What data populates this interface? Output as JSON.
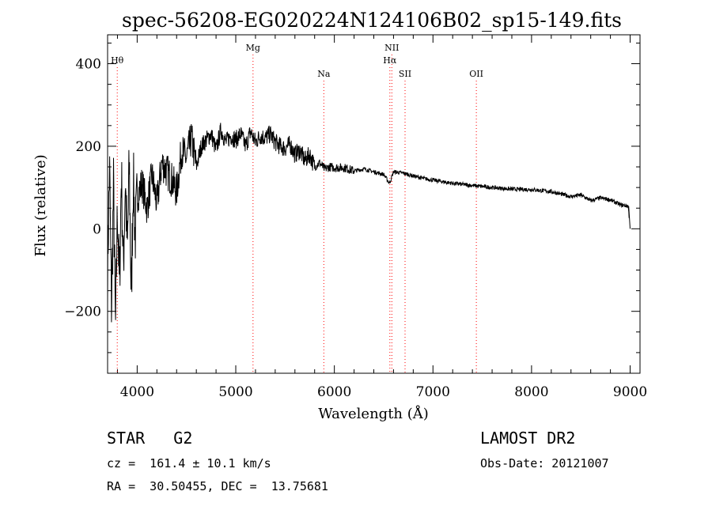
{
  "chart_data": {
    "type": "line",
    "title": "spec-56208-EG020224N124106B02_sp15-149.fits",
    "xlabel": "Wavelength (Å)",
    "ylabel": "Flux (relative)",
    "xlim": [
      3700,
      9100
    ],
    "ylim": [
      -350,
      470
    ],
    "x_ticks": [
      4000,
      5000,
      6000,
      7000,
      8000,
      9000
    ],
    "x_tick_labels": [
      "4000",
      "5000",
      "6000",
      "7000",
      "8000",
      "9000"
    ],
    "y_ticks": [
      -200,
      0,
      200,
      400
    ],
    "y_tick_labels": [
      "−200",
      "0",
      "200",
      "400"
    ],
    "grid": false,
    "line_color": "#000000",
    "marker_color": "#ff0000",
    "series": [
      {
        "x": [
          3700,
          3720,
          3740,
          3760,
          3780,
          3800,
          3820,
          3840,
          3860,
          3880,
          3900,
          3920,
          3940,
          3960,
          3980,
          4000,
          4050,
          4100,
          4150,
          4200,
          4250,
          4300,
          4350,
          4400,
          4450,
          4500,
          4550,
          4600,
          4650,
          4700,
          4750,
          4800,
          4850,
          4900,
          4950,
          5000,
          5050,
          5100,
          5150,
          5200,
          5250,
          5300,
          5350,
          5400,
          5450,
          5500,
          5550,
          5600,
          5650,
          5700,
          5750,
          5800,
          5850,
          5900,
          5950,
          6000,
          6100,
          6200,
          6300,
          6400,
          6500,
          6560,
          6600,
          6700,
          6800,
          6900,
          7000,
          7200,
          7400,
          7600,
          7800,
          8000,
          8200,
          8400,
          8500,
          8600,
          8700,
          8800,
          8900,
          8980,
          9000
        ],
        "y": [
          -100,
          150,
          -200,
          100,
          -250,
          60,
          -150,
          140,
          -100,
          120,
          -60,
          160,
          -180,
          130,
          -20,
          80,
          110,
          50,
          130,
          60,
          160,
          140,
          120,
          90,
          190,
          170,
          220,
          150,
          200,
          215,
          230,
          190,
          240,
          210,
          225,
          215,
          230,
          200,
          235,
          210,
          225,
          220,
          230,
          210,
          200,
          195,
          205,
          180,
          190,
          165,
          180,
          150,
          160,
          145,
          150,
          148,
          148,
          140,
          145,
          138,
          132,
          110,
          138,
          135,
          128,
          122,
          118,
          110,
          105,
          100,
          96,
          95,
          90,
          78,
          82,
          68,
          75,
          70,
          58,
          55,
          0
        ]
      }
    ],
    "line_markers": [
      {
        "label": "Hθ",
        "x": 3798,
        "row": 1
      },
      {
        "label": "Mg",
        "x": 5175,
        "row": 0
      },
      {
        "label": "Na",
        "x": 5893,
        "row": 2
      },
      {
        "label": "NII",
        "x": 6583,
        "row": 0
      },
      {
        "label": "Hα",
        "x": 6563,
        "row": 1
      },
      {
        "label": "SII",
        "x": 6717,
        "row": 2
      },
      {
        "label": "OII",
        "x": 7440,
        "row": 2
      }
    ]
  },
  "info": {
    "object_class": "STAR   G2",
    "survey": "LAMOST DR2",
    "redshift": "cz =  161.4 ± 10.1 km/s",
    "obs_date": "Obs-Date: 20121007",
    "coords": "RA =  30.50455, DEC =  13.75681"
  }
}
